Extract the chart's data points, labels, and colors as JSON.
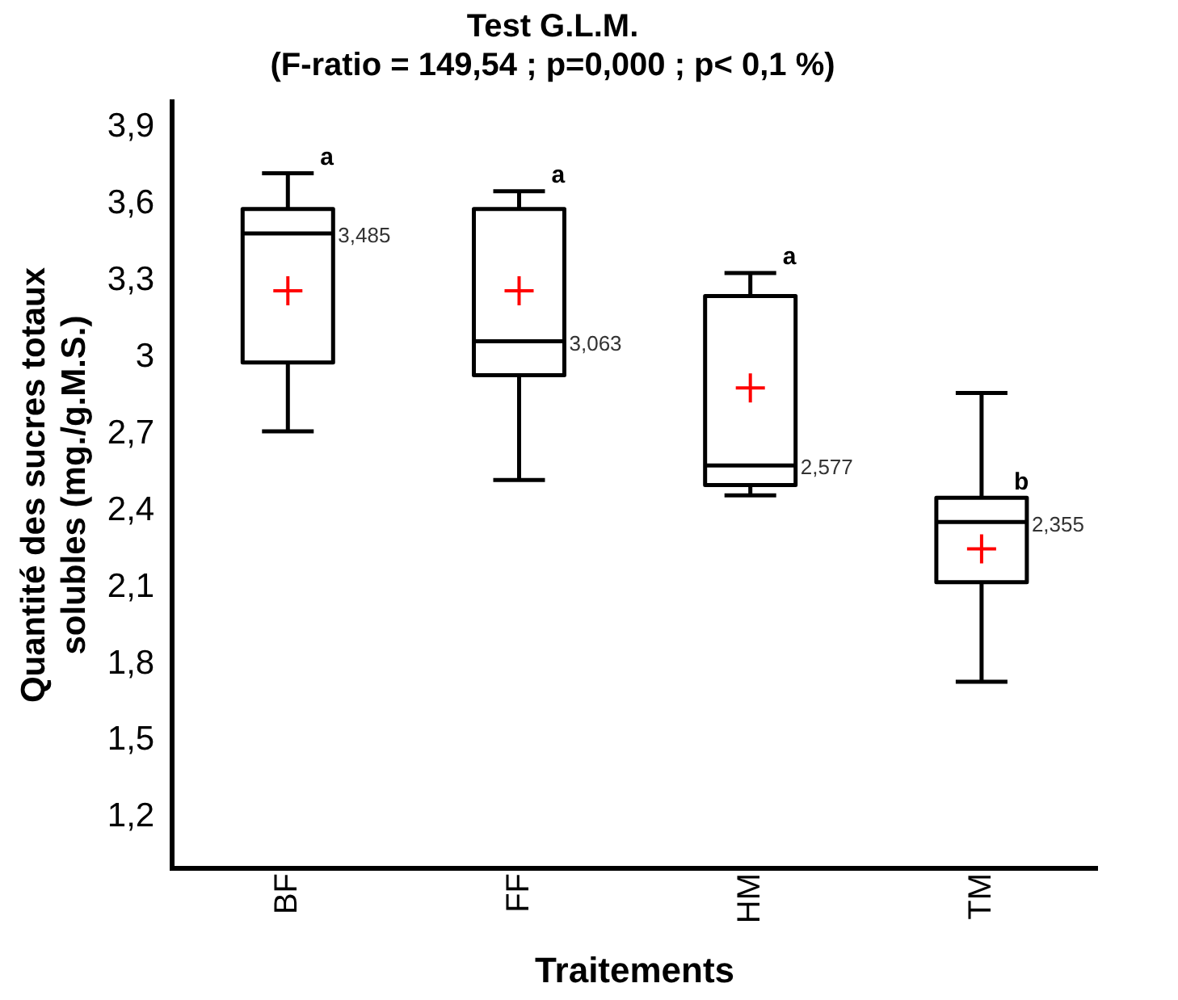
{
  "chart_data": {
    "type": "box",
    "title": "Test G.L.M.",
    "subtitle": "(F-ratio = 149,54 ; p=0,000 ; p< 0,1 %)",
    "xlabel": "Traitements",
    "ylabel": "Quantité des sucres totaux solubles (mg./g.M.S.)",
    "categories": [
      "BF",
      "FF",
      "HM",
      "TM"
    ],
    "boxes": [
      {
        "low": 2.71,
        "q1": 2.98,
        "median": 3.485,
        "q3": 3.58,
        "high": 3.72,
        "mean": 3.26
      },
      {
        "low": 2.52,
        "q1": 2.93,
        "median": 3.063,
        "q3": 3.58,
        "high": 3.65,
        "mean": 3.26
      },
      {
        "low": 2.46,
        "q1": 2.5,
        "median": 2.577,
        "q3": 3.24,
        "high": 3.33,
        "mean": 2.88
      },
      {
        "low": 1.73,
        "q1": 2.12,
        "median": 2.355,
        "q3": 2.45,
        "high": 2.86,
        "mean": 2.25
      }
    ],
    "color": "#000000",
    "ylim": [
      1.0,
      4.0
    ],
    "yticks": [
      {
        "value": 1.2,
        "label": "1,2"
      },
      {
        "value": 1.5,
        "label": "1,5"
      },
      {
        "value": 1.8,
        "label": "1,8"
      },
      {
        "value": 2.1,
        "label": "2,1"
      },
      {
        "value": 2.4,
        "label": "2,4"
      },
      {
        "value": 2.7,
        "label": "2,7"
      },
      3,
      {
        "value": 3.3,
        "label": "3,3"
      },
      {
        "value": 3.6,
        "label": "3,6"
      },
      {
        "value": 3.9,
        "label": "3,9"
      }
    ],
    "annotations": [
      {
        "text": "a",
        "x": "BF",
        "y": 3.72
      },
      {
        "text": "a",
        "x": "FF",
        "y": 3.65
      },
      {
        "text": "a",
        "x": "HM",
        "y": 3.33
      },
      {
        "text": "b",
        "x": "TM",
        "y": 2.45
      },
      {
        "text": "3,485",
        "x": "BF",
        "y": 3.485
      },
      {
        "text": "3,063",
        "x": "FF",
        "y": 3.063
      },
      {
        "text": "2,577",
        "x": "HM",
        "y": 2.577
      },
      {
        "text": "2,355",
        "x": "TM",
        "y": 2.355
      }
    ],
    "grid": false,
    "legend": false
  }
}
